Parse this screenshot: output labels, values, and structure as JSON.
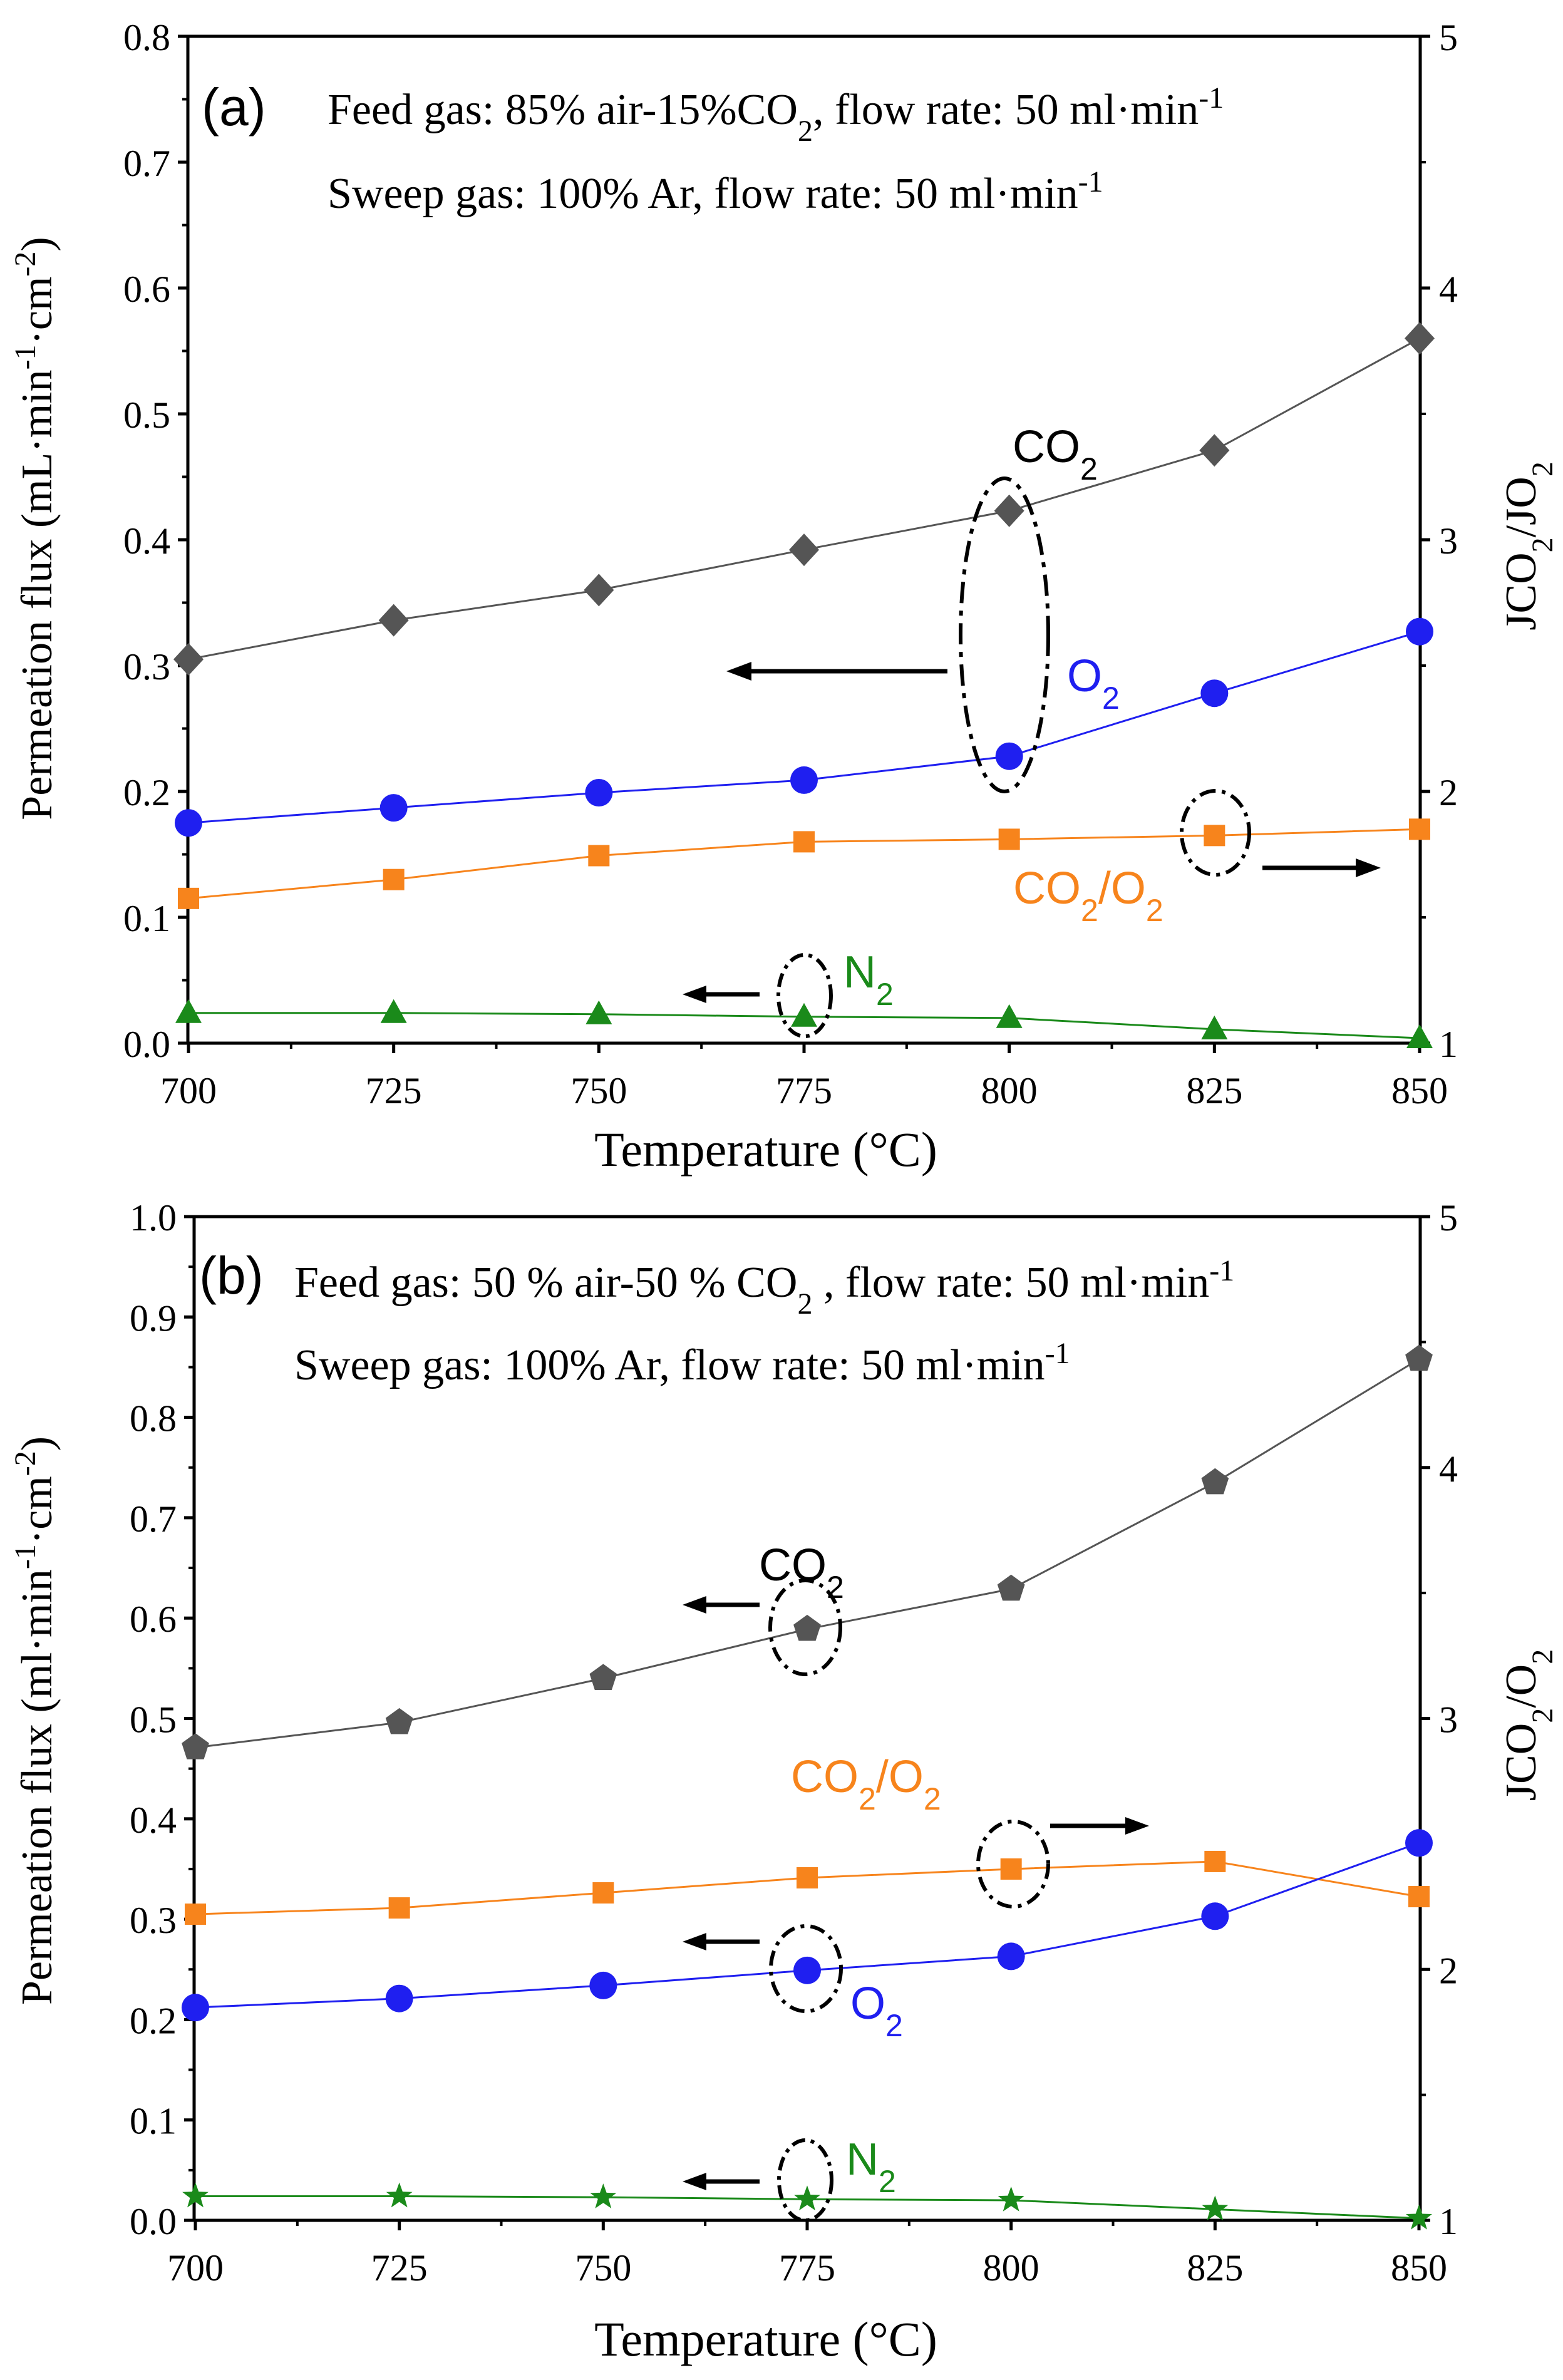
{
  "chart_data": [
    {
      "type": "line",
      "panel_label": "(a)",
      "annotations": [
        {
          "prefix": "Feed gas: 85% air-15%CO",
          "sub": "2",
          "mid": ", flow rate: 50 ml·min",
          "sup": "-1"
        },
        {
          "prefix": "Sweep gas: 100% Ar, flow rate: 50 ml·min",
          "sup": "-1"
        }
      ],
      "xlabel": "Temperature (°C)",
      "ylabel": {
        "prefix": "Permeation flux (mL·min",
        "sup1": "-1",
        "mid": "·cm",
        "sup2": "-2",
        "suffix": ")"
      },
      "y2label": {
        "a": "JCO",
        "s1": "2",
        "b": "/JO",
        "s2": "2"
      },
      "x": [
        700,
        725,
        750,
        775,
        800,
        825,
        850
      ],
      "xticks": [
        "700",
        "725",
        "750",
        "775",
        "800",
        "825",
        "850"
      ],
      "ylim": [
        0,
        0.8
      ],
      "yticks": [
        "0.0",
        "0.1",
        "0.2",
        "0.3",
        "0.4",
        "0.5",
        "0.6",
        "0.7",
        "0.8"
      ],
      "y2lim": [
        1,
        5
      ],
      "y2ticks": [
        "1",
        "2",
        "3",
        "4",
        "5"
      ],
      "series": [
        {
          "key": "co2",
          "label": {
            "t": "CO",
            "s": "2"
          },
          "marker": "diamond",
          "color": "#555555",
          "line": "#555555",
          "axis": "left",
          "values": [
            0.305,
            0.336,
            0.36,
            0.392,
            0.423,
            0.471,
            0.56
          ]
        },
        {
          "key": "o2",
          "label": {
            "t": "O",
            "s": "2"
          },
          "marker": "circle",
          "color": "#1f1ff0",
          "line": "#1f1ff0",
          "axis": "left",
          "values": [
            0.175,
            0.187,
            0.199,
            0.209,
            0.228,
            0.278,
            0.327
          ]
        },
        {
          "key": "ratio",
          "label": {
            "t": "CO",
            "s": "2",
            "t2": "/O",
            "s2": "2"
          },
          "marker": "square",
          "color": "#f7841c",
          "line": "#f7841c",
          "axis": "right",
          "values": [
            1.575,
            1.65,
            1.745,
            1.8,
            1.81,
            1.825,
            1.85
          ]
        },
        {
          "key": "n2",
          "label": {
            "t": "N",
            "s": "2"
          },
          "marker": "triangle",
          "color": "#1a8a1a",
          "line": "#1a8a1a",
          "axis": "left",
          "values": [
            0.024,
            0.024,
            0.023,
            0.021,
            0.02,
            0.011,
            0.004
          ]
        }
      ]
    },
    {
      "type": "line",
      "panel_label": "(b)",
      "annotations": [
        {
          "prefix": "Feed gas: 50 % air-50 % CO",
          "sub": "2",
          "mid": " , flow rate: 50 ml·min",
          "sup": "-1"
        },
        {
          "prefix": "Sweep gas: 100% Ar, flow rate: 50 ml·min",
          "sup": "-1"
        }
      ],
      "xlabel": "Temperature (°C)",
      "ylabel": {
        "prefix": "Permeation flux (ml·min",
        "sup1": "-1",
        "mid": "·cm",
        "sup2": "-2",
        "suffix": ")"
      },
      "y2label": {
        "a": "JCO",
        "s1": "2",
        "b": "/O",
        "s2": "2"
      },
      "x": [
        700,
        725,
        750,
        775,
        800,
        825,
        850
      ],
      "xticks": [
        "700",
        "725",
        "750",
        "775",
        "800",
        "825",
        "850"
      ],
      "ylim": [
        0,
        1.0
      ],
      "yticks": [
        "0.0",
        "0.1",
        "0.2",
        "0.3",
        "0.4",
        "0.5",
        "0.6",
        "0.7",
        "0.8",
        "0.9",
        "1.0"
      ],
      "y2lim": [
        1,
        5
      ],
      "y2ticks": [
        "1",
        "2",
        "3",
        "4",
        "5"
      ],
      "series": [
        {
          "key": "co2",
          "label": {
            "t": "CO",
            "s": "2"
          },
          "marker": "pentagon",
          "color": "#555555",
          "line": "#555555",
          "axis": "left",
          "values": [
            0.471,
            0.496,
            0.54,
            0.589,
            0.629,
            0.735,
            0.858
          ]
        },
        {
          "key": "ratio",
          "label": {
            "t": "CO",
            "s": "2",
            "t2": "/O",
            "s2": "2"
          },
          "marker": "square",
          "color": "#f7841c",
          "line": "#f7841c",
          "axis": "right",
          "values": [
            2.22,
            2.245,
            2.305,
            2.365,
            2.4,
            2.43,
            2.29
          ]
        },
        {
          "key": "o2",
          "label": {
            "t": "O",
            "s": "2"
          },
          "marker": "circle",
          "color": "#1f1ff0",
          "line": "#1f1ff0",
          "axis": "left",
          "values": [
            0.212,
            0.221,
            0.234,
            0.249,
            0.263,
            0.303,
            0.376
          ]
        },
        {
          "key": "n2",
          "label": {
            "t": "N",
            "s": "2"
          },
          "marker": "star",
          "color": "#1a8a1a",
          "line": "#1a8a1a",
          "axis": "left",
          "values": [
            0.024,
            0.024,
            0.023,
            0.021,
            0.02,
            0.011,
            0.002
          ]
        }
      ]
    }
  ]
}
